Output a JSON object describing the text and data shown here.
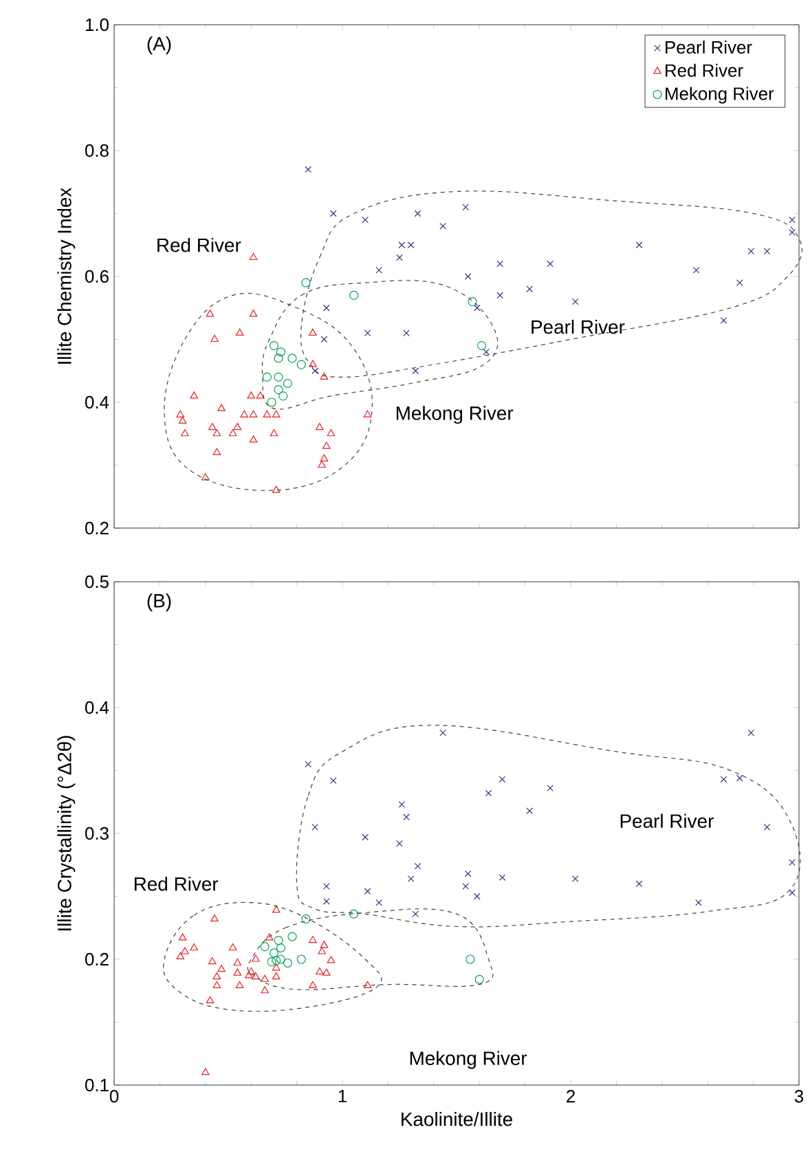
{
  "chart_data": [
    {
      "type": "scatter",
      "title": "(A)",
      "ylabel": "Illite Chemistry Index",
      "xlim": [
        0,
        3
      ],
      "xticks": [
        0,
        1,
        2,
        3
      ],
      "ylim": [
        0.2,
        1.0
      ],
      "yticks": [
        0.2,
        0.4,
        0.6,
        0.8,
        {
          "value": 1.0,
          "label": "1.0"
        }
      ],
      "tick_labels": "y",
      "legend": "top right",
      "grid": false,
      "annotations": [
        "Red River",
        "Pearl River",
        "Mekong River"
      ],
      "series": [
        {
          "name": "Pearl River",
          "color": "#2e3192",
          "marker": "cross",
          "x": [
            0.85,
            0.96,
            1.1,
            1.33,
            1.44,
            1.54,
            1.26,
            1.3,
            1.25,
            1.16,
            1.55,
            1.69,
            1.91,
            1.69,
            1.82,
            1.59,
            2.02,
            2.3,
            2.55,
            2.74,
            2.67,
            2.79,
            2.86,
            2.97,
            2.97,
            0.93,
            0.92,
            1.11,
            1.28,
            1.32,
            1.63,
            0.88
          ],
          "values": [
            0.77,
            0.7,
            0.69,
            0.7,
            0.68,
            0.71,
            0.65,
            0.65,
            0.63,
            0.61,
            0.6,
            0.62,
            0.62,
            0.57,
            0.58,
            0.55,
            0.56,
            0.65,
            0.61,
            0.59,
            0.53,
            0.64,
            0.64,
            0.69,
            0.67,
            0.55,
            0.5,
            0.51,
            0.51,
            0.45,
            0.48,
            0.45
          ]
        },
        {
          "name": "Red River",
          "color": "#ed1c24",
          "marker": "triangle",
          "x": [
            0.61,
            0.42,
            0.61,
            0.44,
            0.55,
            0.87,
            0.87,
            0.92,
            0.35,
            0.47,
            0.6,
            0.64,
            0.57,
            0.61,
            0.67,
            0.71,
            0.29,
            0.3,
            0.31,
            0.43,
            0.45,
            0.52,
            0.54,
            0.61,
            0.7,
            0.45,
            0.9,
            0.95,
            0.93,
            0.92,
            0.91,
            0.4,
            0.71,
            1.11
          ],
          "values": [
            0.63,
            0.54,
            0.54,
            0.5,
            0.51,
            0.51,
            0.46,
            0.44,
            0.41,
            0.39,
            0.41,
            0.41,
            0.38,
            0.38,
            0.38,
            0.38,
            0.38,
            0.37,
            0.35,
            0.36,
            0.35,
            0.35,
            0.36,
            0.34,
            0.35,
            0.32,
            0.36,
            0.35,
            0.33,
            0.31,
            0.3,
            0.28,
            0.26,
            0.38
          ]
        },
        {
          "name": "Mekong River",
          "color": "#00a651",
          "marker": "circle",
          "x": [
            0.84,
            1.05,
            1.57,
            1.61,
            0.7,
            0.73,
            0.72,
            0.78,
            0.82,
            0.67,
            0.72,
            0.72,
            0.76,
            0.74,
            0.69
          ],
          "values": [
            0.59,
            0.57,
            0.56,
            0.49,
            0.49,
            0.48,
            0.47,
            0.47,
            0.46,
            0.44,
            0.44,
            0.42,
            0.43,
            0.41,
            0.4
          ]
        }
      ]
    },
    {
      "type": "scatter",
      "title": "(B)",
      "xlabel": "Kaolinite/Illite",
      "ylabel": "Illite Crystallinity (°Δ2θ)",
      "xlim": [
        0,
        3
      ],
      "xticks": [
        0,
        1,
        2,
        3
      ],
      "ylim": [
        0.1,
        0.5
      ],
      "yticks": [
        0.1,
        0.2,
        0.3,
        0.4,
        0.5
      ],
      "grid": false,
      "annotations": [
        "Red River",
        "Pearl River",
        "Mekong River"
      ],
      "series": [
        {
          "color": "#2e3192",
          "marker": "cross",
          "x": [
            1.44,
            2.79,
            0.85,
            0.96,
            2.67,
            2.74,
            1.7,
            1.64,
            1.91,
            1.82,
            1.26,
            1.28,
            2.86,
            0.88,
            1.1,
            1.25,
            2.97,
            1.33,
            1.3,
            1.55,
            1.54,
            1.59,
            1.7,
            2.02,
            2.3,
            2.56,
            2.97,
            0.93,
            0.93,
            1.11,
            1.16,
            1.32
          ],
          "values": [
            0.38,
            0.38,
            0.355,
            0.342,
            0.343,
            0.344,
            0.343,
            0.332,
            0.336,
            0.318,
            0.323,
            0.313,
            0.305,
            0.305,
            0.297,
            0.292,
            0.277,
            0.274,
            0.264,
            0.268,
            0.258,
            0.25,
            0.265,
            0.264,
            0.26,
            0.245,
            0.253,
            0.258,
            0.246,
            0.254,
            0.245,
            0.236
          ]
        },
        {
          "color": "#ed1c24",
          "marker": "triangle",
          "x": [
            0.71,
            0.44,
            0.3,
            0.35,
            0.31,
            0.29,
            0.52,
            0.43,
            0.47,
            0.54,
            0.62,
            0.68,
            0.45,
            0.54,
            0.45,
            0.55,
            0.6,
            0.62,
            0.59,
            0.66,
            0.71,
            0.66,
            0.87,
            0.92,
            0.91,
            0.95,
            0.9,
            0.93,
            0.87,
            1.11,
            0.42,
            0.4,
            0.71
          ],
          "values": [
            0.239,
            0.232,
            0.217,
            0.209,
            0.206,
            0.202,
            0.209,
            0.198,
            0.192,
            0.197,
            0.2,
            0.217,
            0.186,
            0.189,
            0.179,
            0.179,
            0.19,
            0.186,
            0.187,
            0.184,
            0.186,
            0.175,
            0.215,
            0.211,
            0.206,
            0.199,
            0.19,
            0.189,
            0.179,
            0.179,
            0.167,
            0.11,
            0.193
          ]
        },
        {
          "color": "#00a651",
          "marker": "circle",
          "x": [
            0.84,
            1.05,
            0.78,
            0.72,
            0.66,
            0.73,
            0.7,
            0.82,
            0.71,
            0.73,
            0.76,
            0.69,
            1.56,
            1.6
          ],
          "values": [
            0.232,
            0.236,
            0.218,
            0.215,
            0.21,
            0.209,
            0.205,
            0.2,
            0.199,
            0.2,
            0.197,
            0.198,
            0.2,
            0.184
          ]
        }
      ]
    }
  ]
}
